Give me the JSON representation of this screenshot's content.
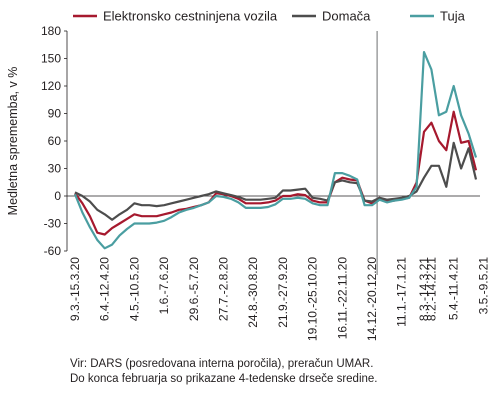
{
  "chart_data": {
    "type": "line",
    "title": "",
    "ylabel": "Medletna sprememba, v %",
    "xlabel": "",
    "ylim": [
      -60,
      180
    ],
    "yticks": [
      -60,
      -30,
      0,
      30,
      60,
      90,
      120,
      150,
      180
    ],
    "legend_position": "top",
    "x_tick_labels": [
      "9.3.-15.3.20",
      "6.4.-12.4.20",
      "4.5.-10.5.20",
      "1.6.-7.6.20",
      "29.6.-5.7.20",
      "27.7.-2.8.20",
      "24.8.-30.8.20",
      "21.9.-27.9.20",
      "19.10.-25.10.20",
      "16.11.-22.11.20",
      "14.12.-20.12.20",
      "11.1.-17.1.21",
      "8.2.-14.2.21",
      "8.3.-14.3.21",
      "5.4.-11.4.21",
      "3.5.-9.5.21"
    ],
    "vline_label": "8.3.-14.3.21",
    "series": [
      {
        "name": "Elektronsko cestninjena vozila",
        "color": "#a6192e",
        "values": [
          3,
          -8,
          -22,
          -40,
          -42,
          -35,
          -30,
          -25,
          -20,
          -22,
          -22,
          -22,
          -20,
          -18,
          -15,
          -14,
          -12,
          -10,
          -7,
          3,
          2,
          0,
          -3,
          -8,
          -8,
          -8,
          -7,
          -5,
          0,
          0,
          2,
          1,
          -5,
          -7,
          -7,
          15,
          20,
          18,
          17,
          -5,
          -8,
          -2,
          -6,
          -5,
          -3,
          -2,
          15,
          70,
          80,
          60,
          50,
          92,
          58,
          60,
          28
        ]
      },
      {
        "name": "Domača",
        "color": "#4d4d4d",
        "values": [
          4,
          0,
          -6,
          -15,
          -20,
          -26,
          -20,
          -15,
          -8,
          -10,
          -10,
          -11,
          -10,
          -8,
          -6,
          -4,
          -2,
          0,
          2,
          5,
          3,
          1,
          -1,
          -4,
          -4,
          -4,
          -3,
          -2,
          6,
          6,
          7,
          8,
          -2,
          -3,
          -5,
          15,
          17,
          15,
          14,
          -5,
          -6,
          -2,
          -4,
          -3,
          -2,
          0,
          5,
          20,
          33,
          33,
          10,
          58,
          30,
          52,
          18
        ]
      },
      {
        "name": "Tuja",
        "color": "#4a9ea1",
        "values": [
          2,
          -18,
          -34,
          -48,
          -57,
          -53,
          -43,
          -36,
          -30,
          -30,
          -30,
          -29,
          -27,
          -23,
          -18,
          -15,
          -13,
          -10,
          -7,
          0,
          -1,
          -3,
          -7,
          -13,
          -13,
          -13,
          -12,
          -9,
          -3,
          -3,
          -2,
          -3,
          -8,
          -10,
          -10,
          25,
          25,
          22,
          18,
          -10,
          -10,
          -4,
          -7,
          -5,
          -4,
          -2,
          10,
          157,
          138,
          88,
          92,
          120,
          88,
          68,
          42
        ]
      }
    ]
  },
  "source_lines": [
    "Vir: DARS (posredovana interna poročila), preračun UMAR.",
    "Do konca februarja so prikazane 4-tedenske drseče sredine."
  ]
}
